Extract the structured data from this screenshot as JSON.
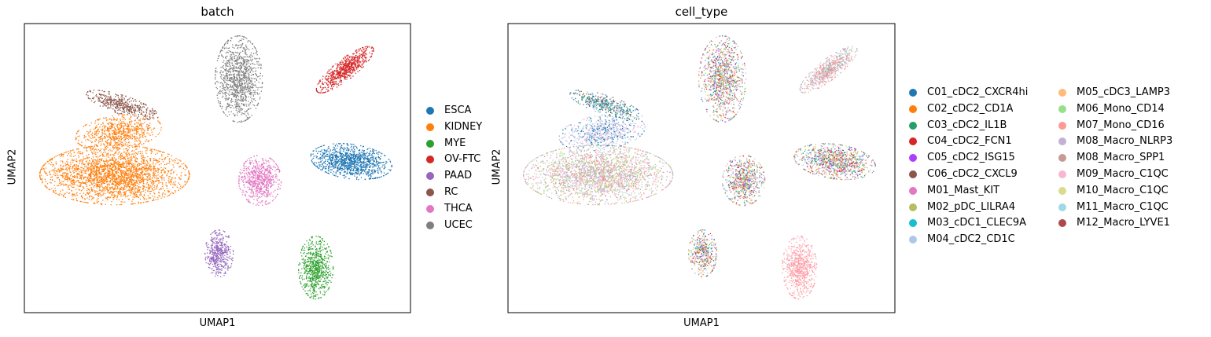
{
  "chart_data": [
    {
      "type": "scatter",
      "title": "batch",
      "xlabel": "UMAP1",
      "ylabel": "UMAP2",
      "grid": false,
      "xticks": false,
      "yticks": false,
      "legend_placement": "right",
      "legend": [
        {
          "name": "ESCA",
          "color": "#1f77b4"
        },
        {
          "name": "KIDNEY",
          "color": "#ff7f0e"
        },
        {
          "name": "MYE",
          "color": "#2ca02c"
        },
        {
          "name": "OV-FTC",
          "color": "#d62728"
        },
        {
          "name": "PAAD",
          "color": "#9467bd"
        },
        {
          "name": "RC",
          "color": "#8c564b"
        },
        {
          "name": "THCA",
          "color": "#e377c2"
        },
        {
          "name": "UCEC",
          "color": "#7f7f7f"
        }
      ]
    },
    {
      "type": "scatter",
      "title": "cell_type",
      "xlabel": "UMAP1",
      "ylabel": "UMAP2",
      "grid": false,
      "xticks": false,
      "yticks": false,
      "legend_placement": "right",
      "legend": [
        {
          "name": "C01_cDC2_CXCR4hi",
          "color": "#1f77b4"
        },
        {
          "name": "C02_cDC2_CD1A",
          "color": "#ff7f0e"
        },
        {
          "name": "C03_cDC2_IL1B",
          "color": "#279e68"
        },
        {
          "name": "C04_cDC2_FCN1",
          "color": "#d62728"
        },
        {
          "name": "C05_cDC2_ISG15",
          "color": "#aa40fc"
        },
        {
          "name": "C06_cDC2_CXCL9",
          "color": "#8c564b"
        },
        {
          "name": "M01_Mast_KIT",
          "color": "#e377c2"
        },
        {
          "name": "M02_pDC_LILRA4",
          "color": "#b5bd61"
        },
        {
          "name": "M03_cDC1_CLEC9A",
          "color": "#17becf"
        },
        {
          "name": "M04_cDC2_CD1C",
          "color": "#aec7e8"
        },
        {
          "name": "M05_cDC3_LAMP3",
          "color": "#ffbb78"
        },
        {
          "name": "M06_Mono_CD14",
          "color": "#98df8a"
        },
        {
          "name": "M07_Mono_CD16",
          "color": "#ff9896"
        },
        {
          "name": "M08_Macro_NLRP3",
          "color": "#c5b0d5"
        },
        {
          "name": "M08_Macro_SPP1",
          "color": "#c49c94"
        },
        {
          "name": "M09_Macro_C1QC",
          "color": "#f7b6d2"
        },
        {
          "name": "M10_Macro_C1QC",
          "color": "#dbdb8d"
        },
        {
          "name": "M11_Macro_C1QC",
          "color": "#9edae5"
        },
        {
          "name": "M12_Macro_LYVE1",
          "color": "#ad494a"
        }
      ]
    }
  ]
}
